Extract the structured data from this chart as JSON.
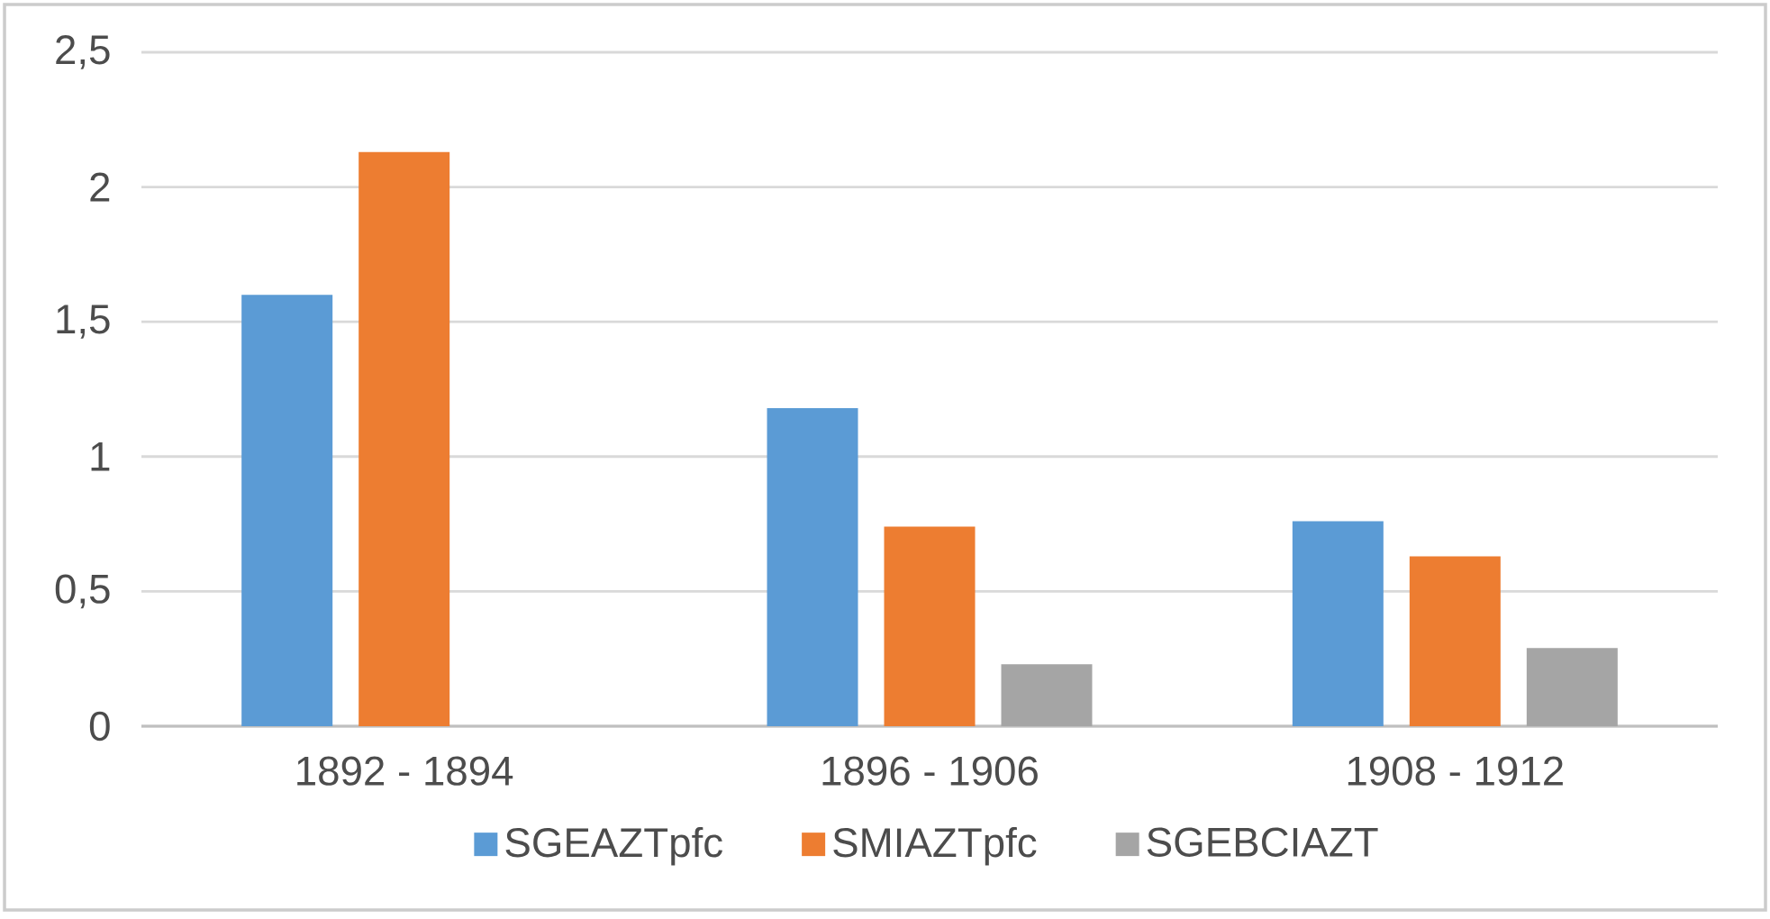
{
  "chart_data": {
    "type": "bar",
    "categories": [
      "1892 - 1894",
      "1896 - 1906",
      "1908 - 1912"
    ],
    "series": [
      {
        "name": "SGEAZTpfc",
        "color": "#5b9bd5",
        "values": [
          1.6,
          1.18,
          0.76
        ]
      },
      {
        "name": "SMIAZTpfc",
        "color": "#ed7d31",
        "values": [
          2.13,
          0.74,
          0.63
        ]
      },
      {
        "name": "SGEBCIAZT",
        "color": "#a5a5a5",
        "values": [
          null,
          0.23,
          0.29
        ]
      }
    ],
    "ylim": [
      0,
      2.5
    ],
    "yticks": [
      0,
      {
        "value": 0.5,
        "label": "0,5"
      },
      1,
      {
        "value": 1.5,
        "label": "1,5"
      },
      2,
      {
        "value": 2.5,
        "label": "2,5"
      }
    ],
    "grid": "y",
    "legend": "bottom"
  }
}
